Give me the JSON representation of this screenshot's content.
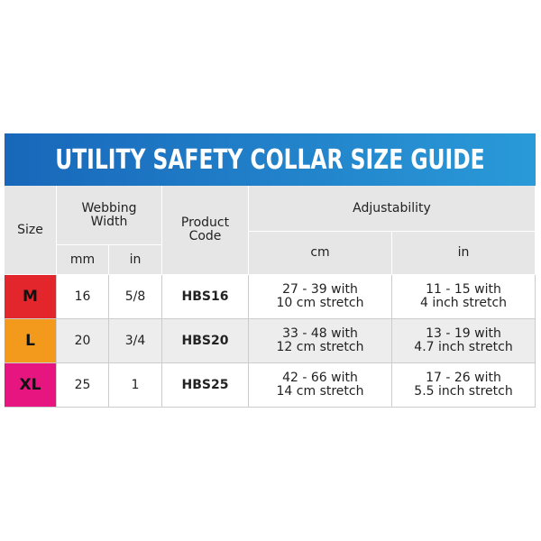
{
  "title": "UTILITY SAFETY COLLAR SIZE GUIDE",
  "header": {
    "size": "Size",
    "webbing_width": "Webbing\nWidth",
    "mm": "mm",
    "in": "in",
    "product_code": "Product\nCode",
    "adjustability": "Adjustability",
    "cm": "cm",
    "adj_in": "in"
  },
  "rows": [
    {
      "size": "M",
      "mm": 16,
      "in": "5/8",
      "code": "HBS16",
      "cm": "27 - 39 with\n10 cm stretch",
      "adj_in": "11 - 15 with\n4 inch stretch"
    },
    {
      "size": "L",
      "mm": 20,
      "in": "3/4",
      "code": "HBS20",
      "cm": "33 - 48 with\n12 cm stretch",
      "adj_in": "13 - 19 with\n4.7 inch stretch"
    },
    {
      "size": "XL",
      "mm": 25,
      "in": 1,
      "code": "HBS25",
      "cm": "42 - 66 with\n14 cm stretch",
      "adj_in": "17 - 26 with\n5.5 inch stretch"
    }
  ]
}
